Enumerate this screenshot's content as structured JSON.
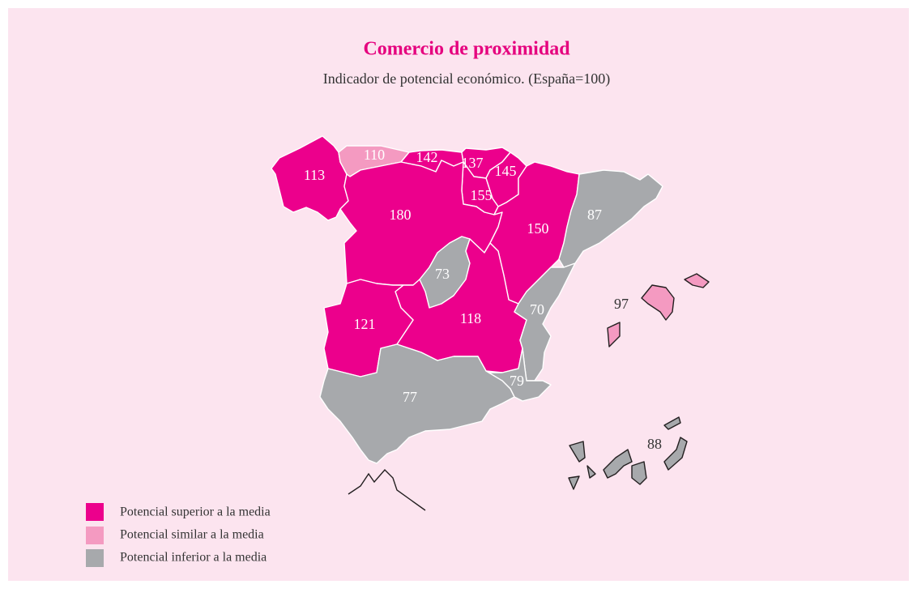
{
  "title": "Comercio de proximidad",
  "subtitle": "Indicador de potencial económico. (España=100)",
  "regions": [
    {
      "value": 113,
      "color": "#ec008c"
    },
    {
      "value": 110,
      "color": "#f49ac1"
    },
    {
      "value": 142,
      "color": "#ec008c"
    },
    {
      "value": 137,
      "color": "#ec008c"
    },
    {
      "value": 145,
      "color": "#ec008c"
    },
    {
      "value": 155,
      "color": "#ec008c"
    },
    {
      "value": 180,
      "color": "#ec008c"
    },
    {
      "value": 150,
      "color": "#ec008c"
    },
    {
      "value": 87,
      "color": "#a7a9ac"
    },
    {
      "value": 73,
      "color": "#a7a9ac"
    },
    {
      "value": 118,
      "color": "#ec008c"
    },
    {
      "value": 121,
      "color": "#ec008c"
    },
    {
      "value": 70,
      "color": "#a7a9ac"
    },
    {
      "value": 79,
      "color": "#a7a9ac"
    },
    {
      "value": 77,
      "color": "#a7a9ac"
    },
    {
      "value": 97,
      "color": "#f49ac1"
    },
    {
      "value": 88,
      "color": "#a7a9ac"
    }
  ],
  "legend": [
    {
      "label": "Potencial superior a la media",
      "color": "#ec008c"
    },
    {
      "label": "Potencial similar a la media",
      "color": "#f49ac1"
    },
    {
      "label": "Potencial inferior a la media",
      "color": "#a7a9ac"
    }
  ]
}
